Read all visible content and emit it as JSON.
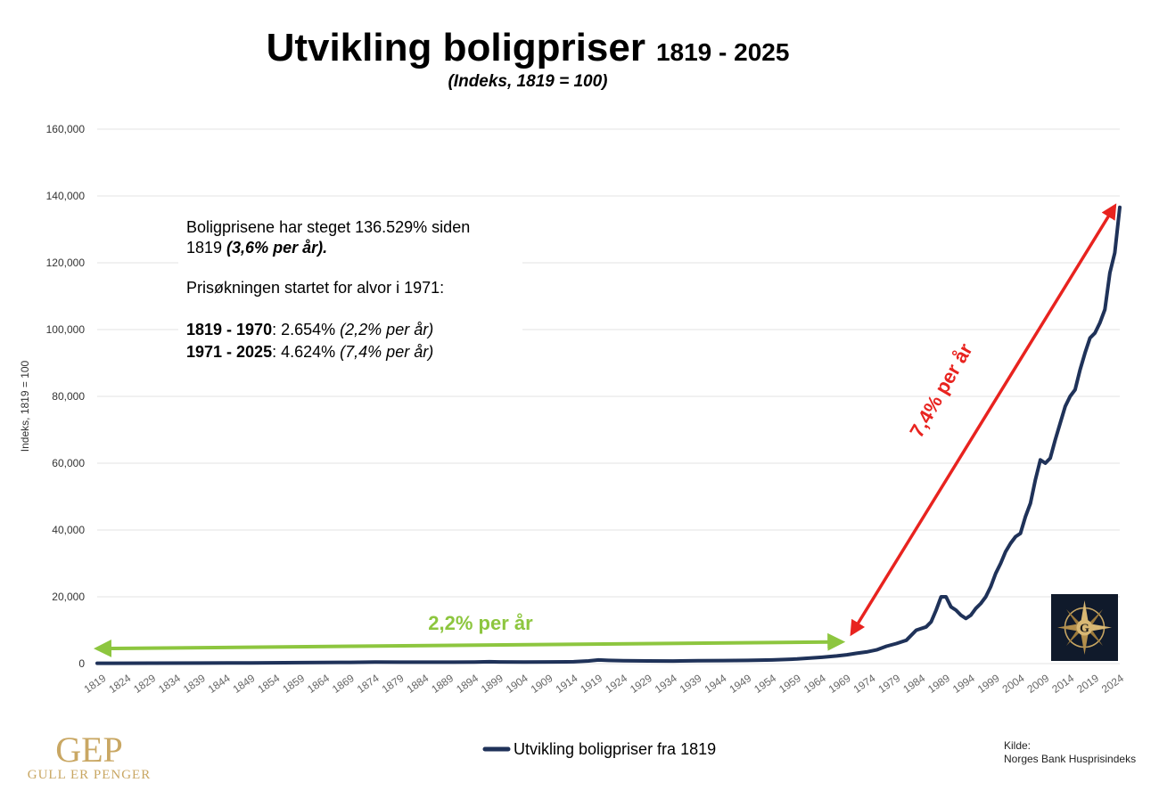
{
  "chart_data": {
    "type": "line",
    "title": "Utvikling boligpriser",
    "title_years": "1819 - 2025",
    "subtitle": "(Indeks, 1819 = 100)",
    "ylabel": "Indeks, 1819 = 100",
    "ylim": [
      0,
      160000
    ],
    "yticks": [
      0,
      20000,
      40000,
      60000,
      80000,
      100000,
      120000,
      140000,
      160000
    ],
    "ytick_labels": [
      "0",
      "20,000",
      "40,000",
      "60,000",
      "80,000",
      "100,000",
      "120,000",
      "140,000",
      "160,000"
    ],
    "xlim": [
      1819,
      2025
    ],
    "xticks": [
      1819,
      1824,
      1829,
      1834,
      1839,
      1844,
      1849,
      1854,
      1859,
      1864,
      1869,
      1874,
      1879,
      1884,
      1889,
      1894,
      1899,
      1904,
      1909,
      1914,
      1919,
      1924,
      1929,
      1934,
      1939,
      1944,
      1949,
      1954,
      1959,
      1964,
      1969,
      1974,
      1979,
      1984,
      1989,
      1994,
      1999,
      2004,
      2009,
      2014,
      2019,
      2024
    ],
    "grid": true,
    "legend_position": "bottom-center",
    "series": [
      {
        "name": "Utvikling boligpriser fra 1819",
        "color": "#1f3259",
        "x": [
          1819,
          1830,
          1840,
          1850,
          1860,
          1870,
          1875,
          1880,
          1885,
          1890,
          1895,
          1898,
          1900,
          1905,
          1910,
          1915,
          1918,
          1920,
          1922,
          1925,
          1930,
          1935,
          1940,
          1945,
          1950,
          1955,
          1960,
          1965,
          1968,
          1970,
          1972,
          1974,
          1976,
          1978,
          1980,
          1982,
          1984,
          1986,
          1987,
          1988,
          1989,
          1990,
          1991,
          1992,
          1993,
          1994,
          1995,
          1996,
          1997,
          1998,
          1999,
          2000,
          2001,
          2002,
          2003,
          2004,
          2005,
          2006,
          2007,
          2008,
          2009,
          2010,
          2011,
          2012,
          2013,
          2014,
          2015,
          2016,
          2017,
          2018,
          2019,
          2020,
          2021,
          2022,
          2023,
          2024,
          2025
        ],
        "values": [
          100,
          130,
          160,
          220,
          300,
          380,
          460,
          430,
          420,
          440,
          470,
          560,
          500,
          470,
          500,
          560,
          800,
          1100,
          950,
          850,
          800,
          780,
          850,
          900,
          950,
          1100,
          1400,
          1900,
          2300,
          2650,
          3100,
          3500,
          4100,
          5200,
          6000,
          7000,
          10000,
          11000,
          12500,
          16000,
          20000,
          20000,
          17000,
          16000,
          14500,
          13500,
          14500,
          16500,
          18000,
          20000,
          23000,
          27000,
          30000,
          33500,
          36000,
          38000,
          39000,
          44000,
          48000,
          55000,
          61000,
          60000,
          61500,
          67000,
          72000,
          77000,
          80000,
          82000,
          88000,
          93000,
          97500,
          99000,
          102000,
          106000,
          117000,
          123000,
          136600
        ]
      }
    ],
    "annotations": {
      "green_label": "2,2% per år",
      "red_label": "7,4% per år",
      "green_arrow": {
        "x_start": 1819,
        "y_start": 4500,
        "x_end": 1969,
        "y_end": 6500
      },
      "red_arrow": {
        "x_start": 1971,
        "y_start": 9000,
        "x_end": 2024,
        "y_end": 137000
      },
      "textbox": {
        "line1": "Boligprisene har steget 136.529% siden",
        "line2_plain": "1819 ",
        "line2_emph": "(3,6% per år).",
        "line3": "Prisøkningen startet for alvor i 1971:",
        "line4_bold": "1819 - 1970",
        "line4_plain": ": 2.654% ",
        "line4_italic": "(2,2% per år)",
        "line5_bold": "1971 - 2025",
        "line5_plain": ": 4.624% ",
        "line5_italic": "(7,4% per år)"
      }
    },
    "colors": {
      "green": "#8dc63f",
      "red": "#e8231f",
      "gridline": "#e3e3e3",
      "logo_gold": "#c9a763",
      "emblem_bg": "#101a2b"
    }
  },
  "source": {
    "label": "Kilde:",
    "text": "Norges Bank Husprisindeks"
  },
  "brand": {
    "logo_mark": "GEP",
    "logo_name": "GULL ER PENGER",
    "emblem_letter": "G"
  }
}
